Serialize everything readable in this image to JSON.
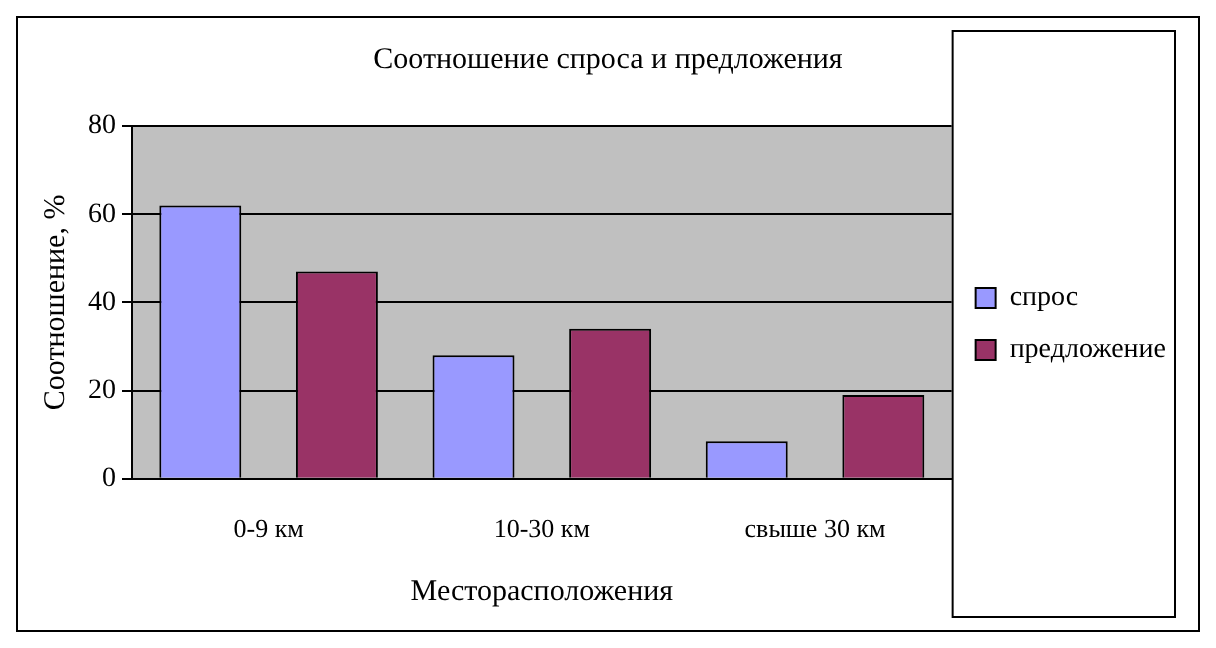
{
  "chart_data": {
    "type": "bar",
    "title": "Соотношение спроса и предложения",
    "xlabel": "Месторасположения",
    "ylabel": "Соотношение, %",
    "categories": [
      "0-9 км",
      "10-30 км",
      "свыше 30 км"
    ],
    "series": [
      {
        "name": "спрос",
        "color": "#9999ff",
        "values": [
          62,
          28,
          8.5
        ]
      },
      {
        "name": "предложение",
        "color": "#993366",
        "values": [
          47,
          34,
          19
        ]
      }
    ],
    "ylim": [
      0,
      80
    ],
    "yticks": [
      0,
      20,
      40,
      60,
      80
    ],
    "grid": "y",
    "legend": "right"
  }
}
